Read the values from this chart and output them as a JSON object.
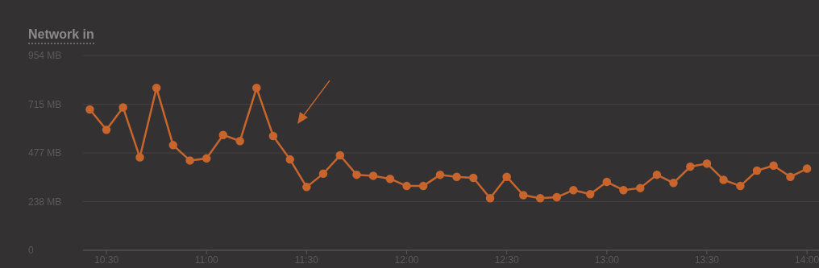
{
  "chart_data": {
    "type": "line",
    "title": "Network in",
    "x": [
      10.417,
      10.5,
      10.583,
      10.667,
      10.75,
      10.833,
      10.917,
      11,
      11.083,
      11.167,
      11.25,
      11.333,
      11.417,
      11.5,
      11.583,
      11.667,
      11.75,
      11.833,
      11.917,
      12,
      12.083,
      12.167,
      12.25,
      12.333,
      12.417,
      12.5,
      12.583,
      12.667,
      12.75,
      12.833,
      12.917,
      13,
      13.083,
      13.167,
      13.25,
      13.333,
      13.417,
      13.5,
      13.583,
      13.667,
      13.75,
      13.833,
      13.917,
      14
    ],
    "series": [
      {
        "color": "#c8652d",
        "values": [
          690,
          590,
          700,
          455,
          795,
          515,
          440,
          450,
          565,
          535,
          795,
          560,
          445,
          310,
          375,
          465,
          370,
          365,
          350,
          315,
          315,
          370,
          360,
          355,
          255,
          360,
          270,
          255,
          260,
          295,
          275,
          335,
          295,
          305,
          370,
          330,
          410,
          425,
          345,
          315,
          390,
          415,
          360,
          400
        ]
      }
    ],
    "xlim": [
      10.383,
      14.06
    ],
    "xticks": [
      {
        "value": 10.5,
        "label": "10:30"
      },
      {
        "value": 11,
        "label": "11:00"
      },
      {
        "value": 11.5,
        "label": "11:30"
      },
      {
        "value": 12,
        "label": "12:00"
      },
      {
        "value": 12.5,
        "label": "12:30"
      },
      {
        "value": 13,
        "label": "13:00"
      },
      {
        "value": 13.5,
        "label": "13:30"
      },
      {
        "value": 14,
        "label": "14:00"
      }
    ],
    "ylim": [
      0,
      954
    ],
    "yticks": [
      0,
      {
        "value": 238,
        "label": "238 MB"
      },
      {
        "value": 477,
        "label": "477 MB"
      },
      {
        "value": 715,
        "label": "715 MB"
      },
      {
        "value": 954,
        "label": "954 MB"
      }
    ],
    "grid": "y",
    "marker": "circle",
    "line_style": "solid"
  }
}
